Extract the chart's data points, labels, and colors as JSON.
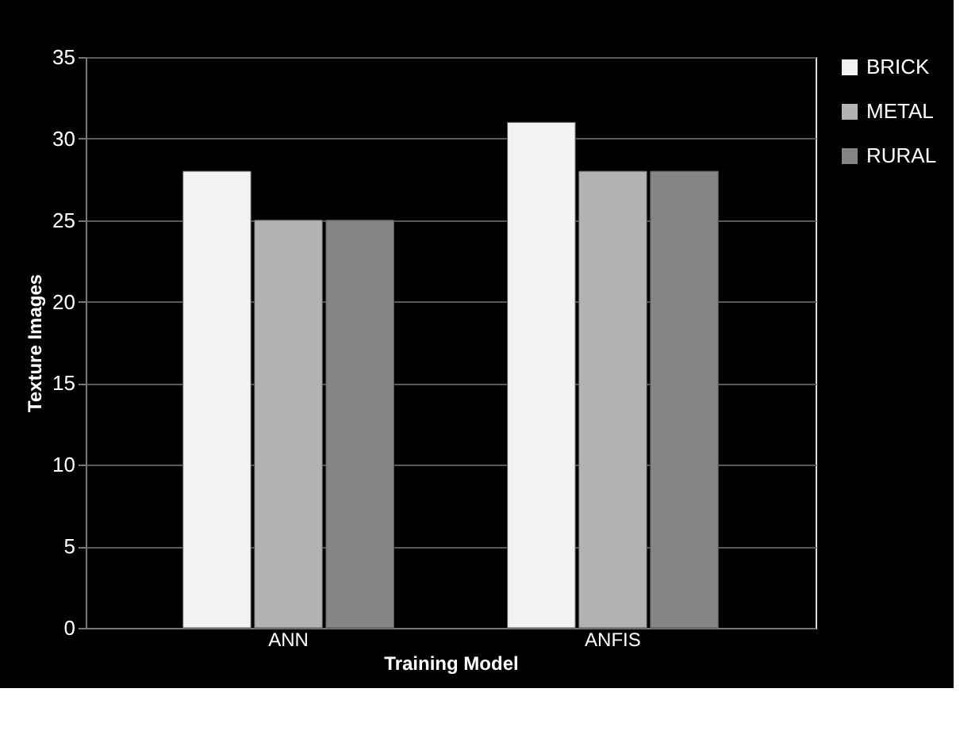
{
  "chart_data": {
    "type": "bar",
    "xlabel": "Training Model",
    "ylabel": "Texture Images",
    "categories": [
      "ANN",
      "ANFIS"
    ],
    "series": [
      {
        "name": "BRICK",
        "color": "#f2f2f2",
        "values": [
          28,
          31
        ]
      },
      {
        "name": "METAL",
        "color": "#b3b3b3",
        "values": [
          25,
          28
        ]
      },
      {
        "name": "RURAL",
        "color": "#858585",
        "values": [
          25,
          28
        ]
      }
    ],
    "ylim": [
      0,
      35
    ],
    "yticks": [
      0,
      5,
      10,
      15,
      20,
      25,
      30,
      35
    ],
    "grid": "y",
    "legend": "right"
  }
}
